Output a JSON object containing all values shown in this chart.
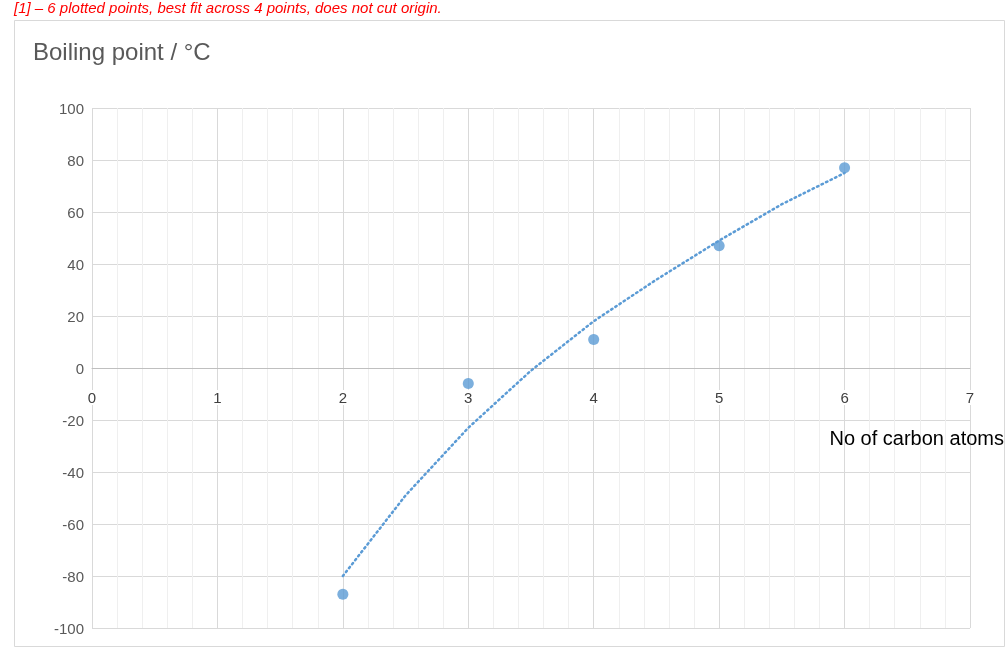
{
  "chart_data": {
    "type": "scatter",
    "title": "Boiling point / °C",
    "xlabel": "No of carbon atoms",
    "annotations": [
      "[1] – 6 plotted points, best fit across 4 points, does not cut origin."
    ],
    "xlim": [
      0,
      7
    ],
    "xticks": [
      0,
      1,
      2,
      3,
      4,
      5,
      6,
      7
    ],
    "ylim": [
      -100,
      100
    ],
    "yticks": [
      -100,
      -80,
      -60,
      -40,
      -20,
      0,
      20,
      40,
      60,
      80,
      100
    ],
    "grid": true,
    "series": [
      {
        "color": "#5b9bd5",
        "marker": "circle",
        "x": [
          2,
          3,
          4,
          5,
          6
        ],
        "values": [
          -87,
          -6,
          11,
          47,
          77
        ]
      },
      {
        "type": "line",
        "color": "#5b9bd5",
        "marker": "none",
        "line_style": "dotted",
        "x": [
          2,
          2.5,
          3,
          3.5,
          4,
          4.5,
          5,
          5.5,
          6
        ],
        "values": [
          -80,
          -49,
          -23,
          -1,
          18,
          34,
          49,
          63,
          75
        ]
      }
    ]
  }
}
